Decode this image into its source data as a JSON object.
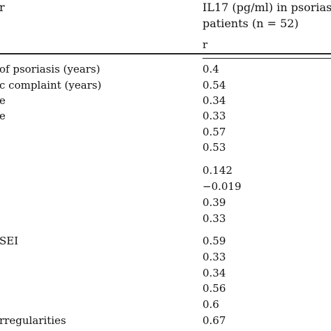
{
  "header": {
    "left_label": "r",
    "right_line1": "IL17 (pg/ml) in psorias",
    "right_line2": "patients (n = 52)",
    "subheader": "r"
  },
  "rows": [
    {
      "label": "of psoriasis (years)",
      "value": "0.4"
    },
    {
      "label": "c complaint (years)",
      "value": "0.54"
    },
    {
      "label": "e",
      "value": "0.34"
    },
    {
      "label": "e",
      "value": "0.33"
    },
    {
      "label": "",
      "value": "0.57"
    },
    {
      "label": "",
      "value": "0.53"
    },
    {
      "label": "",
      "value": "0.142"
    },
    {
      "label": "",
      "value": "−0.019"
    },
    {
      "label": "",
      "value": "0.39"
    },
    {
      "label": "",
      "value": "0.33"
    },
    {
      "label": "SEI",
      "value": "0.59"
    },
    {
      "label": "",
      "value": "0.33"
    },
    {
      "label": "",
      "value": "0.34"
    },
    {
      "label": "",
      "value": "0.56"
    },
    {
      "label": "",
      "value": "0.6"
    },
    {
      "label": "rregularities",
      "value": "0.67"
    }
  ]
}
